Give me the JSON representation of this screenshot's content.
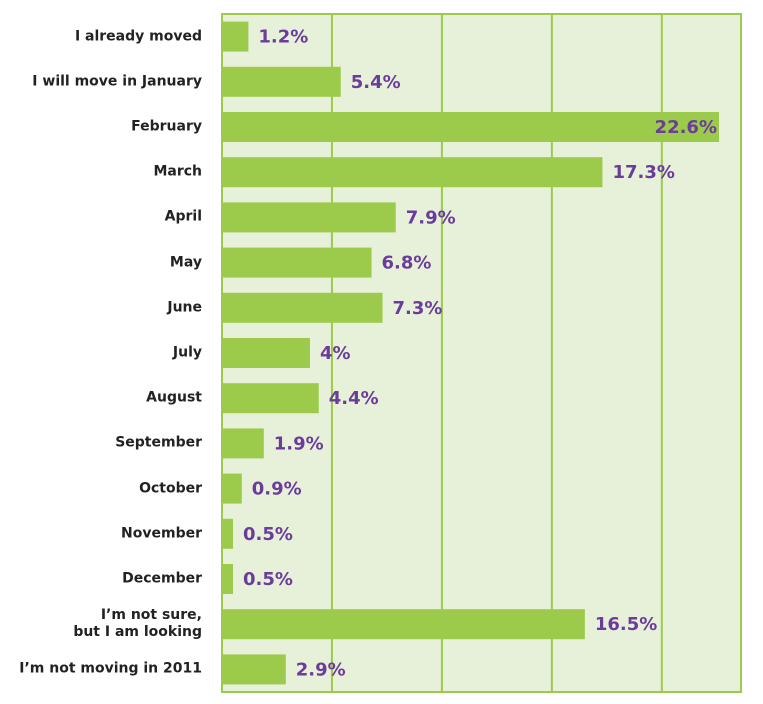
{
  "chart_data": {
    "type": "bar",
    "orientation": "horizontal",
    "categories": [
      "I already moved",
      "I will move in January",
      "February",
      "March",
      "April",
      "May",
      "June",
      "July",
      "August",
      "September",
      "October",
      "November",
      "December",
      "I’m not sure,\nbut I am looking",
      "I’m not moving in 2011"
    ],
    "values": [
      1.2,
      5.4,
      22.6,
      17.3,
      7.9,
      6.8,
      7.3,
      4,
      4.4,
      1.9,
      0.9,
      0.5,
      0.5,
      16.5,
      2.9
    ],
    "value_labels": [
      "1.2%",
      "5.4%",
      "22.6%",
      "17.3%",
      "7.9%",
      "6.8%",
      "7.3%",
      "4%",
      "4.4%",
      "1.9%",
      "0.9%",
      "0.5%",
      "0.5%",
      "16.5%",
      "2.9%"
    ],
    "color": "#9ccb4b",
    "xlim": [
      0,
      23.6
    ],
    "xticks": [
      0,
      5,
      10,
      15,
      20
    ],
    "grid": true
  }
}
